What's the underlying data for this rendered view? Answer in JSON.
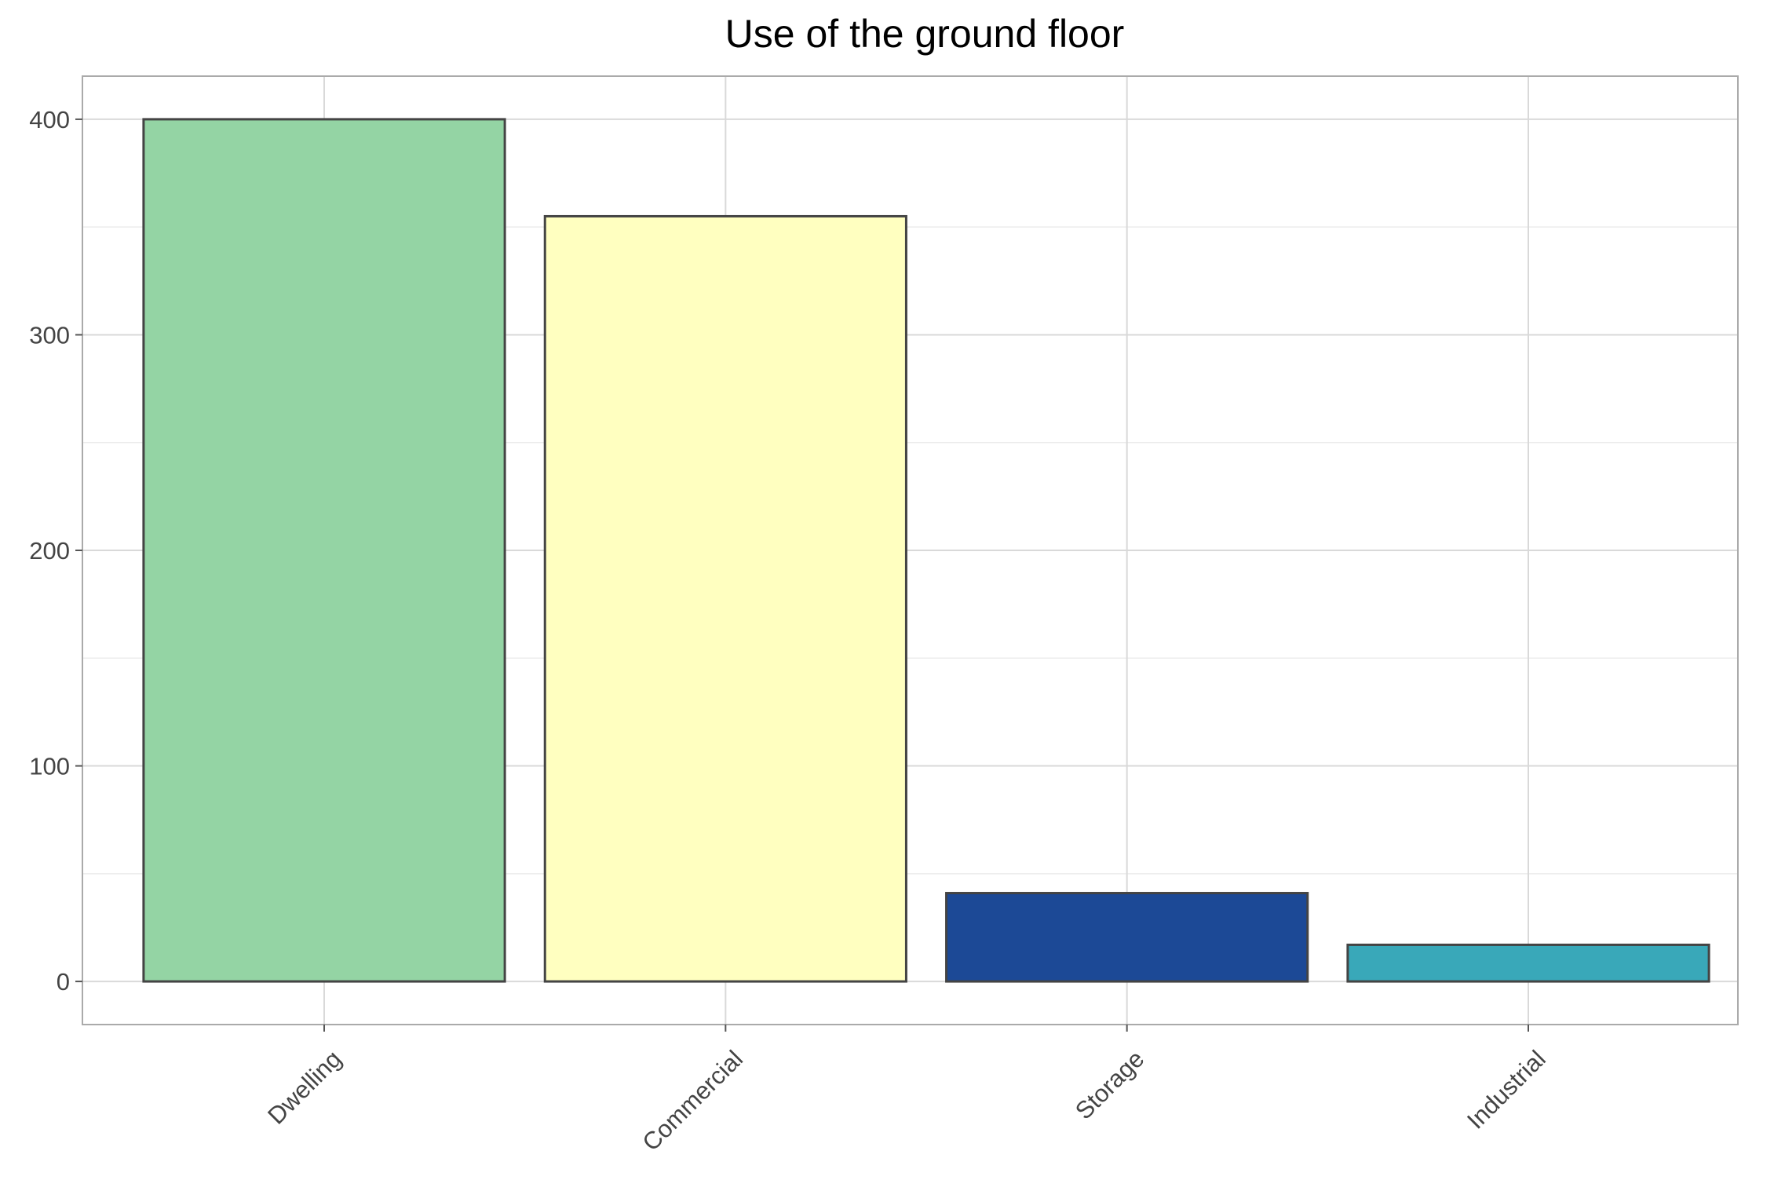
{
  "chart_data": {
    "type": "bar",
    "title": "Use of the ground floor",
    "xlabel": "",
    "ylabel": "",
    "categories": [
      "Dwelling",
      "Commercial",
      "Storage",
      "Industrial"
    ],
    "values": [
      400,
      355,
      41,
      17
    ],
    "colors": [
      "#94d4a4",
      "#ffffc0",
      "#1c4996",
      "#39a8b9"
    ],
    "bar_edge_color": "#444444",
    "ylim": [
      -20,
      420
    ],
    "yticks": [
      0,
      100,
      200,
      300,
      400
    ],
    "ytick_labels": [
      "0",
      "100",
      "200",
      "300",
      "400"
    ],
    "grid": true,
    "minor_grid": true,
    "legend": "none",
    "frame_color": "#aaaaaa",
    "grid_color": "#d9d9d9"
  }
}
